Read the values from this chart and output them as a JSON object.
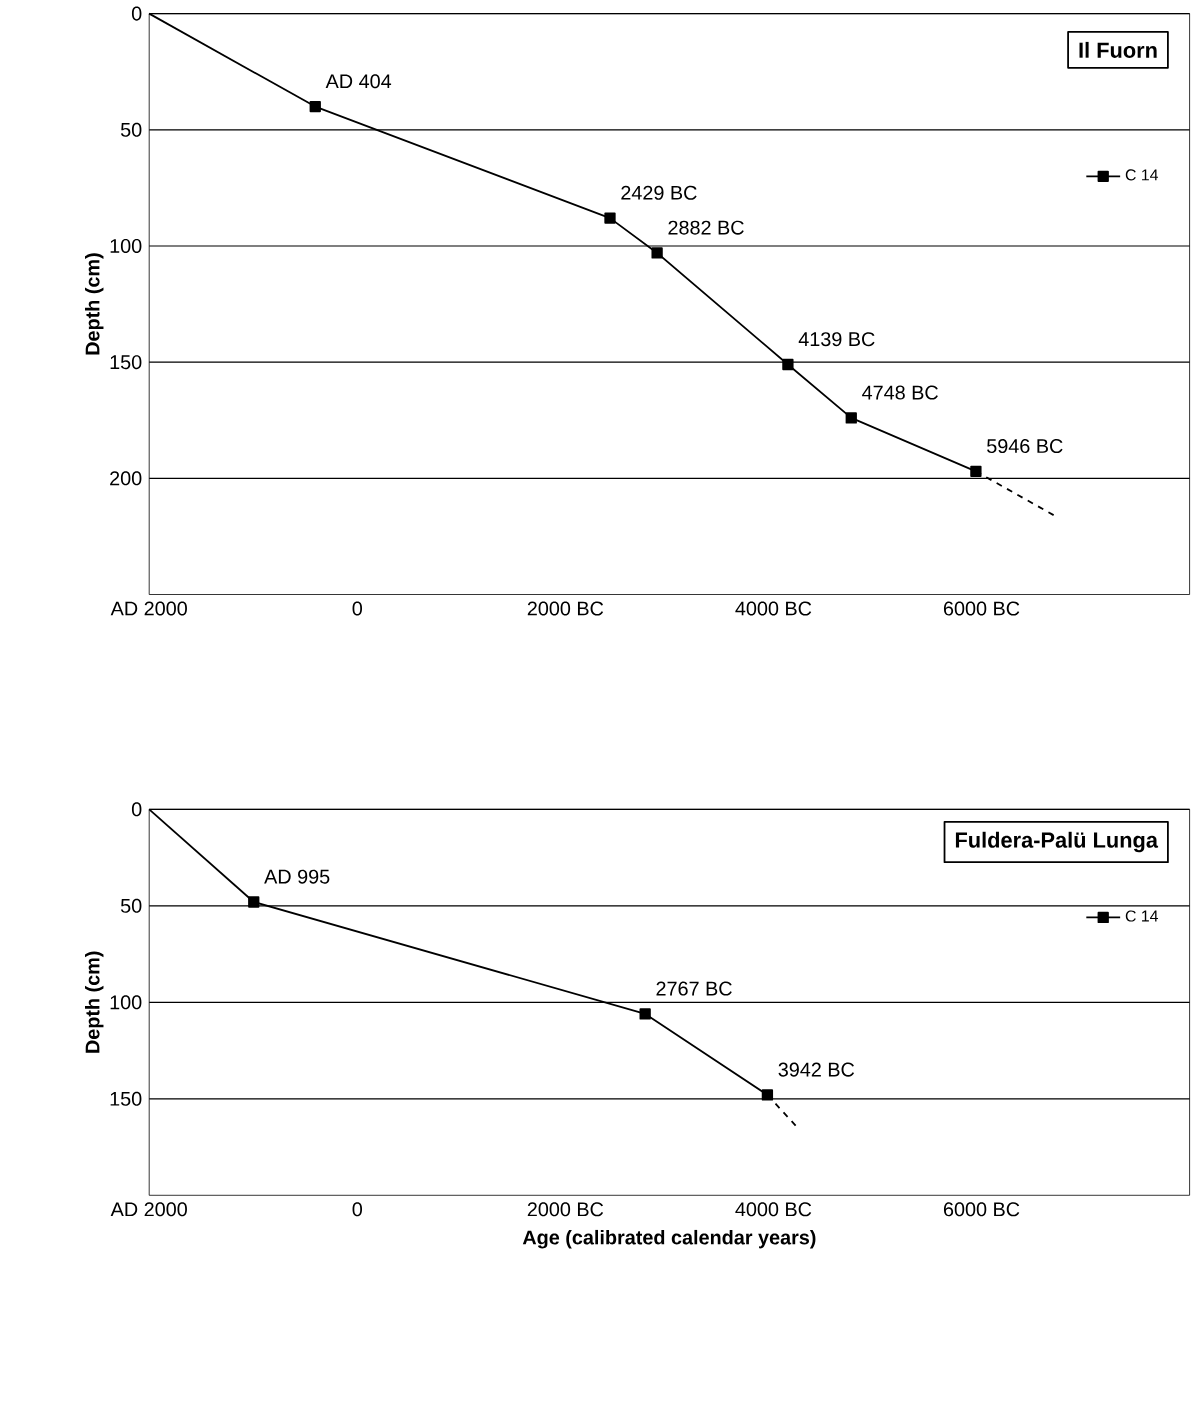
{
  "chart_data": [
    {
      "type": "line",
      "title": "Il Fuorn",
      "ylabel": "Depth (cm)",
      "xlim": [
        -2000,
        8000
      ],
      "ylim": [
        250,
        0
      ],
      "xticks": [
        {
          "value": -2000,
          "label": "AD 2000"
        },
        0,
        {
          "value": 2000,
          "label": "2000 BC"
        },
        {
          "value": 4000,
          "label": "4000 BC"
        },
        {
          "value": 6000,
          "label": "6000 BC"
        }
      ],
      "yticks": [
        0,
        50,
        100,
        150,
        200
      ],
      "grid": "y",
      "legend": "right",
      "series": [
        {
          "color": "#000000",
          "x": [
            -2000,
            -404
          ],
          "values": [
            0,
            40
          ]
        },
        {
          "name": "C 14",
          "color": "#000000",
          "marker": "square",
          "x": [
            -404,
            2429,
            2882,
            4139,
            4748,
            5946
          ],
          "values": [
            40,
            88,
            103,
            151,
            174,
            197
          ]
        },
        {
          "color": "#000000",
          "line_style": "dashed",
          "x": [
            5946,
            6700
          ],
          "values": [
            197,
            216
          ]
        }
      ],
      "annotations": [
        {
          "text": "AD 404",
          "x": -404,
          "y": 40
        },
        {
          "text": "2429 BC",
          "x": 2429,
          "y": 88
        },
        {
          "text": "2882 BC",
          "x": 2882,
          "y": 103
        },
        {
          "text": "4139 BC",
          "x": 4139,
          "y": 151
        },
        {
          "text": "4748 BC",
          "x": 4748,
          "y": 174
        },
        {
          "text": "5946 BC",
          "x": 5946,
          "y": 197
        }
      ]
    },
    {
      "type": "line",
      "title": "Fuldera-Palü Lunga",
      "xlabel": "Age (calibrated calendar years)",
      "ylabel": "Depth (cm)",
      "xlim": [
        -2000,
        8000
      ],
      "ylim": [
        200,
        0
      ],
      "xticks": [
        {
          "value": -2000,
          "label": "AD 2000"
        },
        0,
        {
          "value": 2000,
          "label": "2000 BC"
        },
        {
          "value": 4000,
          "label": "4000 BC"
        },
        {
          "value": 6000,
          "label": "6000 BC"
        }
      ],
      "yticks": [
        0,
        50,
        100,
        150
      ],
      "grid": "y",
      "legend": "right",
      "series": [
        {
          "color": "#000000",
          "x": [
            -2000,
            -995
          ],
          "values": [
            0,
            48
          ]
        },
        {
          "name": "C 14",
          "color": "#000000",
          "marker": "square",
          "x": [
            -995,
            2767,
            3942
          ],
          "values": [
            48,
            106,
            148
          ]
        },
        {
          "color": "#000000",
          "line_style": "dashed",
          "x": [
            3942,
            4250
          ],
          "values": [
            148,
            166
          ]
        }
      ],
      "annotations": [
        {
          "text": "AD 995",
          "x": -995,
          "y": 48
        },
        {
          "text": "2767 BC",
          "x": 2767,
          "y": 106
        },
        {
          "text": "3942 BC",
          "x": 3942,
          "y": 148
        }
      ]
    }
  ]
}
